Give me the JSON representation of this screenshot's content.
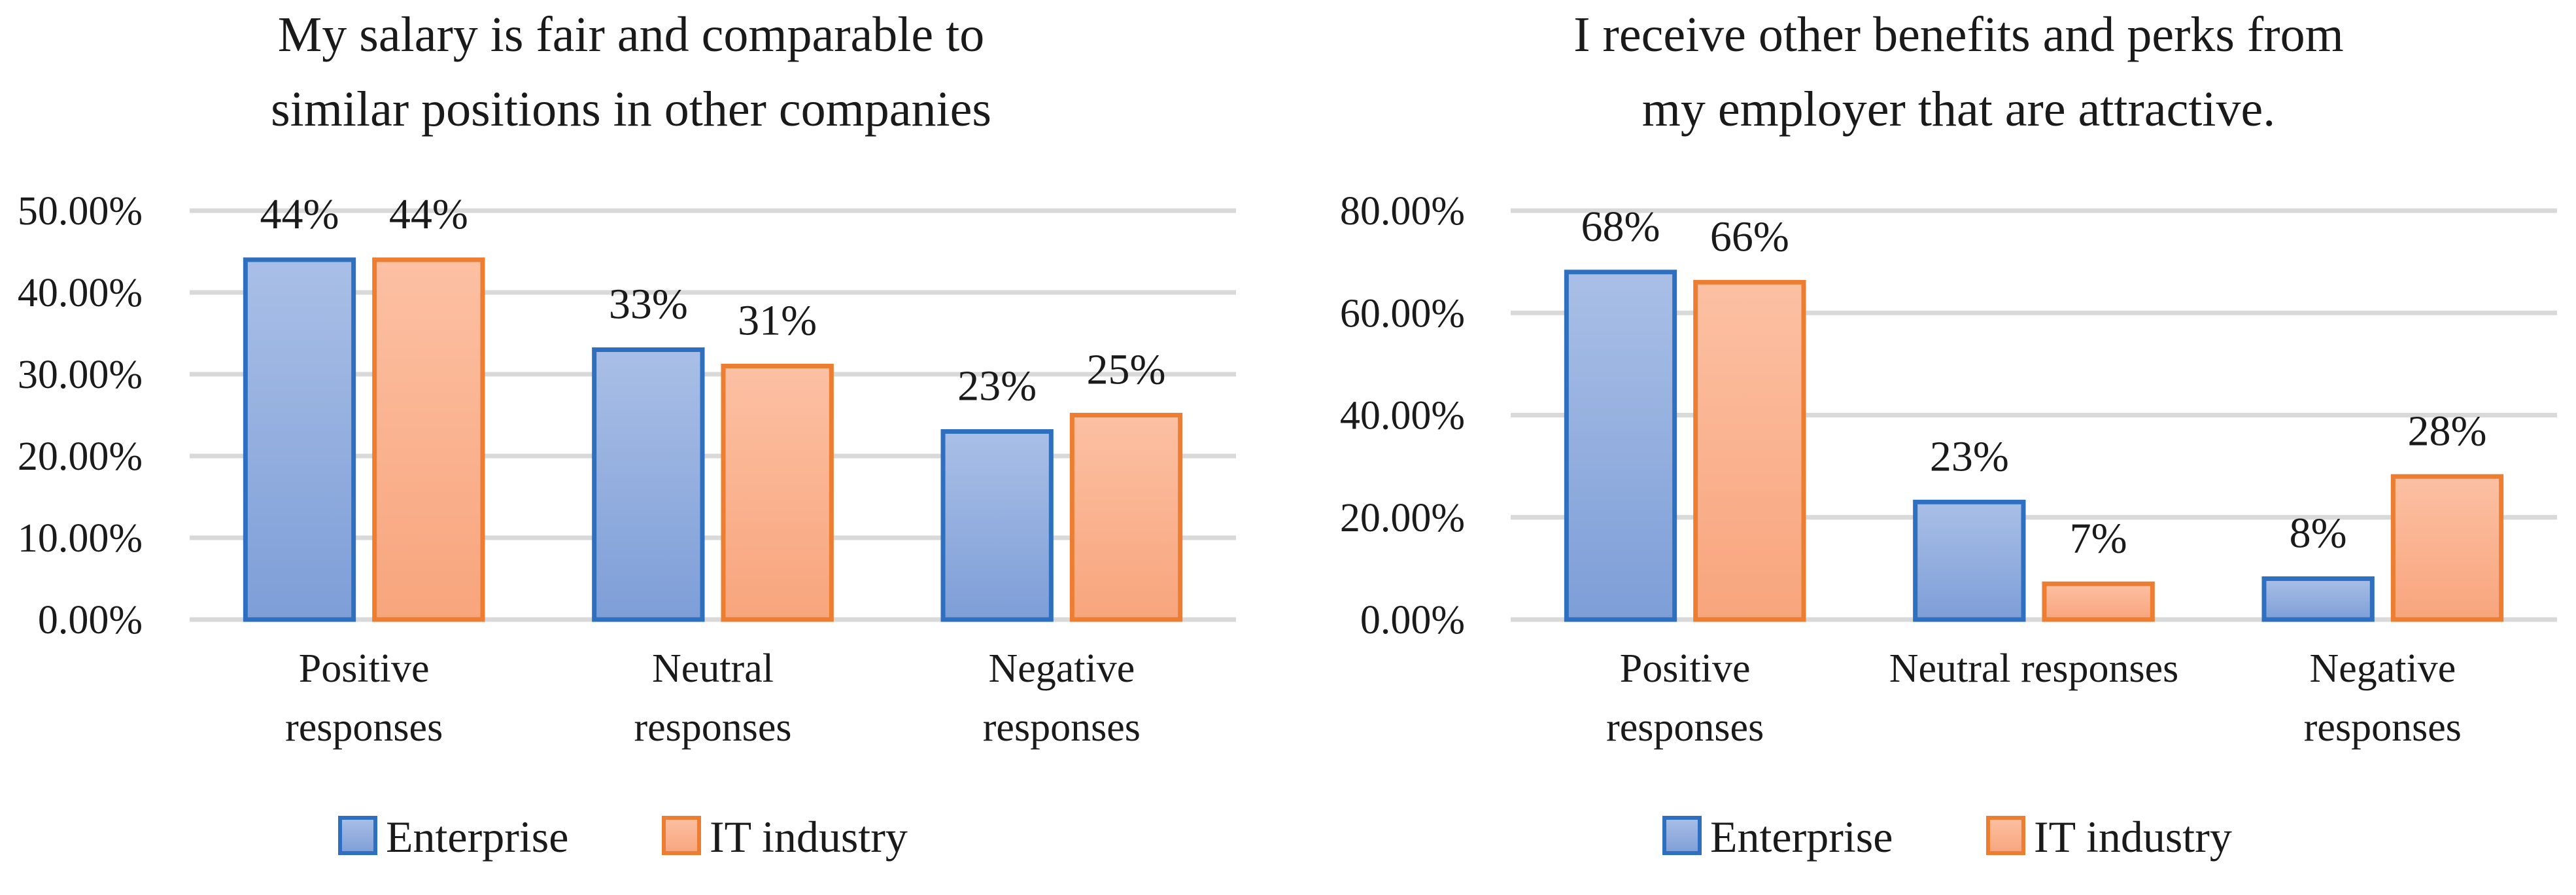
{
  "colors": {
    "enterprise_top": "#a9bfe6",
    "enterprise_bottom": "#7e9ed8",
    "enterprise_stroke": "#2e6fc0",
    "it_top": "#fcc0a3",
    "it_bottom": "#f8a57c",
    "it_stroke": "#ed7d31"
  },
  "chart_data": [
    {
      "type": "bar",
      "title": [
        "My salary is fair and comparable to",
        "similar positions in other companies"
      ],
      "categories": [
        [
          "Positive",
          "responses"
        ],
        [
          "Neutral",
          "responses"
        ],
        [
          "Negative",
          "responses"
        ]
      ],
      "series": [
        {
          "name": "Enterprise",
          "values": [
            44,
            33,
            23
          ],
          "labels": [
            "44%",
            "33%",
            "23%"
          ]
        },
        {
          "name": "IT industry",
          "values": [
            44,
            31,
            25
          ],
          "labels": [
            "44%",
            "31%",
            "25%"
          ]
        }
      ],
      "ylim": [
        0,
        50
      ],
      "yticks": [
        0,
        10,
        20,
        30,
        40,
        50
      ],
      "ytick_labels": [
        "0.00%",
        "10.00%",
        "20.00%",
        "30.00%",
        "40.00%",
        "50.00%"
      ],
      "legend_position": "bottom"
    },
    {
      "type": "bar",
      "title": [
        "I receive other benefits and perks from",
        "my employer that are attractive."
      ],
      "categories": [
        [
          "Positive",
          "responses"
        ],
        [
          "Neutral responses"
        ],
        [
          "Negative",
          "responses"
        ]
      ],
      "series": [
        {
          "name": "Enterprise",
          "values": [
            68,
            23,
            8
          ],
          "labels": [
            "68%",
            "23%",
            "8%"
          ]
        },
        {
          "name": "IT industry",
          "values": [
            66,
            7,
            28
          ],
          "labels": [
            "66%",
            "7%",
            "28%"
          ]
        }
      ],
      "ylim": [
        0,
        80
      ],
      "yticks": [
        0,
        20,
        40,
        60,
        80
      ],
      "ytick_labels": [
        "0.00%",
        "20.00%",
        "40.00%",
        "60.00%",
        "80.00%"
      ],
      "legend_position": "bottom"
    }
  ]
}
